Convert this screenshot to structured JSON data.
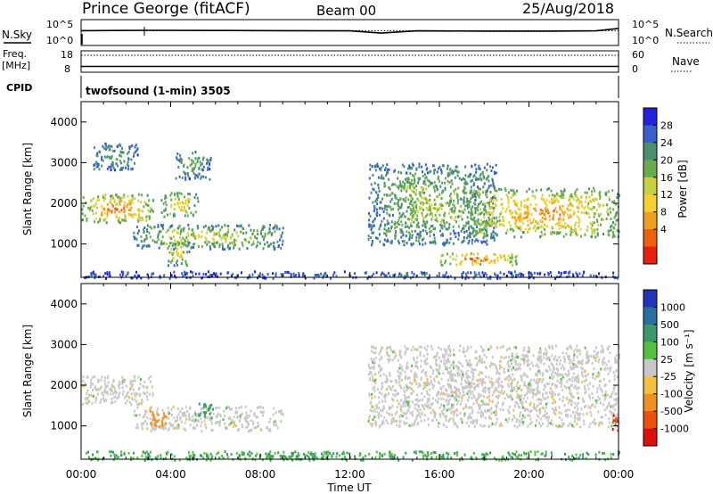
{
  "header": {
    "radar": "Prince George (fitACF)",
    "beam": "Beam 00",
    "date": "25/Aug/2018"
  },
  "noise_panel": {
    "label": "N.Sky",
    "right_label": "N.Search",
    "tick_top": "10^5",
    "tick_bottom": "10^0"
  },
  "freq_panel": {
    "label_line1": "Freq.",
    "label_line2": "[MHz]",
    "right_label": "Nave",
    "left_ticks": [
      "18",
      "8"
    ],
    "right_ticks": [
      "60",
      "0"
    ]
  },
  "cpid_panel": {
    "label": "CPID",
    "mode": "twofsound (1-min) 3505"
  },
  "power_panel": {
    "ylabel": "Slant Range [km]",
    "yticks": [
      "4000",
      "3000",
      "2000",
      "1000"
    ],
    "colorbar_label": "Power [dB]",
    "colorbar_ticks": [
      "28",
      "24",
      "20",
      "16",
      "12",
      "8",
      "4"
    ],
    "colors": [
      "#2222dd",
      "#3a5fcd",
      "#4a9070",
      "#6aab50",
      "#c8d040",
      "#f5d030",
      "#f0a020",
      "#ee6010",
      "#e82010"
    ]
  },
  "velocity_panel": {
    "ylabel": "Slant Range [km]",
    "yticks": [
      "4000",
      "3000",
      "2000",
      "1000"
    ],
    "colorbar_label": "Velocity [m s⁻¹]",
    "colorbar_ticks": [
      "1000",
      "500",
      "100",
      "25",
      "-25",
      "-100",
      "-500",
      "-1000"
    ],
    "colors": [
      "#2233bb",
      "#2a6fa0",
      "#3a9a6a",
      "#55c040",
      "#c8c8c8",
      "#f5c040",
      "#f09020",
      "#ee5010",
      "#dd1010"
    ],
    "ground_scatter_color": "#c8c8c8"
  },
  "xaxis": {
    "label": "Time UT",
    "ticks": [
      "00:00",
      "04:00",
      "08:00",
      "12:00",
      "16:00",
      "20:00",
      "00:00"
    ]
  },
  "chart_data": [
    {
      "type": "line",
      "name": "noise",
      "x_hours": [
        0,
        3,
        6,
        9,
        12,
        13.4,
        15,
        18,
        21,
        23,
        24
      ],
      "series": [
        {
          "name": "N.Sky",
          "values": [
            1000,
            1200,
            1100,
            1000,
            900,
            300,
            900,
            800,
            800,
            900,
            3000
          ]
        },
        {
          "name": "N.Search",
          "values": [
            1000,
            1000,
            1000,
            1000,
            1000,
            1000,
            1000,
            1000,
            1000,
            1000,
            1000
          ]
        }
      ],
      "ylim": [
        1,
        100000
      ],
      "log_scale": true
    },
    {
      "type": "line",
      "name": "frequency",
      "x_hours": [
        0,
        24
      ],
      "series": [
        {
          "name": "Freq.",
          "values": [
            10.5,
            10.5
          ]
        },
        {
          "name": "Nave",
          "values": [
            30,
            30
          ]
        }
      ],
      "ylim": [
        8,
        18
      ],
      "ylim_right": [
        0,
        60
      ]
    },
    {
      "type": "heatmap",
      "name": "power",
      "xlim": [
        0,
        24
      ],
      "ylim": [
        180,
        4500
      ],
      "colorbar_range": [
        0,
        30
      ],
      "regions": [
        {
          "t": [
            0.0,
            3.2
          ],
          "r": [
            1550,
            2250
          ],
          "level": 26
        },
        {
          "t": [
            0.5,
            2.5
          ],
          "r": [
            2850,
            3500
          ],
          "level": 12
        },
        {
          "t": [
            3.5,
            5.2
          ],
          "r": [
            1700,
            2300
          ],
          "level": 20
        },
        {
          "t": [
            4.2,
            5.8
          ],
          "r": [
            2600,
            3300
          ],
          "level": 12
        },
        {
          "t": [
            2.3,
            9.0
          ],
          "r": [
            900,
            1500
          ],
          "level": 17
        },
        {
          "t": [
            3.8,
            4.8
          ],
          "r": [
            500,
            1100
          ],
          "level": 20
        },
        {
          "t": [
            12.8,
            18.5
          ],
          "r": [
            1000,
            3000
          ],
          "level": 15
        },
        {
          "t": [
            17.2,
            24.0
          ],
          "r": [
            1200,
            2400
          ],
          "level": 24
        },
        {
          "t": [
            16.0,
            19.5
          ],
          "r": [
            500,
            800
          ],
          "level": 27
        },
        {
          "t": [
            0.0,
            24.0
          ],
          "r": [
            180,
            350
          ],
          "level": 7
        }
      ]
    },
    {
      "type": "heatmap",
      "name": "velocity",
      "xlim": [
        0,
        24
      ],
      "ylim": [
        180,
        4500
      ],
      "colorbar_range": [
        -1000,
        1000
      ],
      "regions": [
        {
          "t": [
            0.0,
            3.2
          ],
          "r": [
            1550,
            2250
          ],
          "v": 0
        },
        {
          "t": [
            2.3,
            9.0
          ],
          "r": [
            900,
            1500
          ],
          "v": 0
        },
        {
          "t": [
            3.0,
            3.8
          ],
          "r": [
            1000,
            1400
          ],
          "v": -300
        },
        {
          "t": [
            5.2,
            5.9
          ],
          "r": [
            1200,
            1600
          ],
          "v": 100
        },
        {
          "t": [
            12.8,
            24.0
          ],
          "r": [
            1000,
            3000
          ],
          "v": 0
        },
        {
          "t": [
            23.6,
            24.0
          ],
          "r": [
            900,
            1300
          ],
          "v": -900
        },
        {
          "t": [
            0.0,
            24.0
          ],
          "r": [
            180,
            400
          ],
          "v": 60
        }
      ]
    }
  ]
}
